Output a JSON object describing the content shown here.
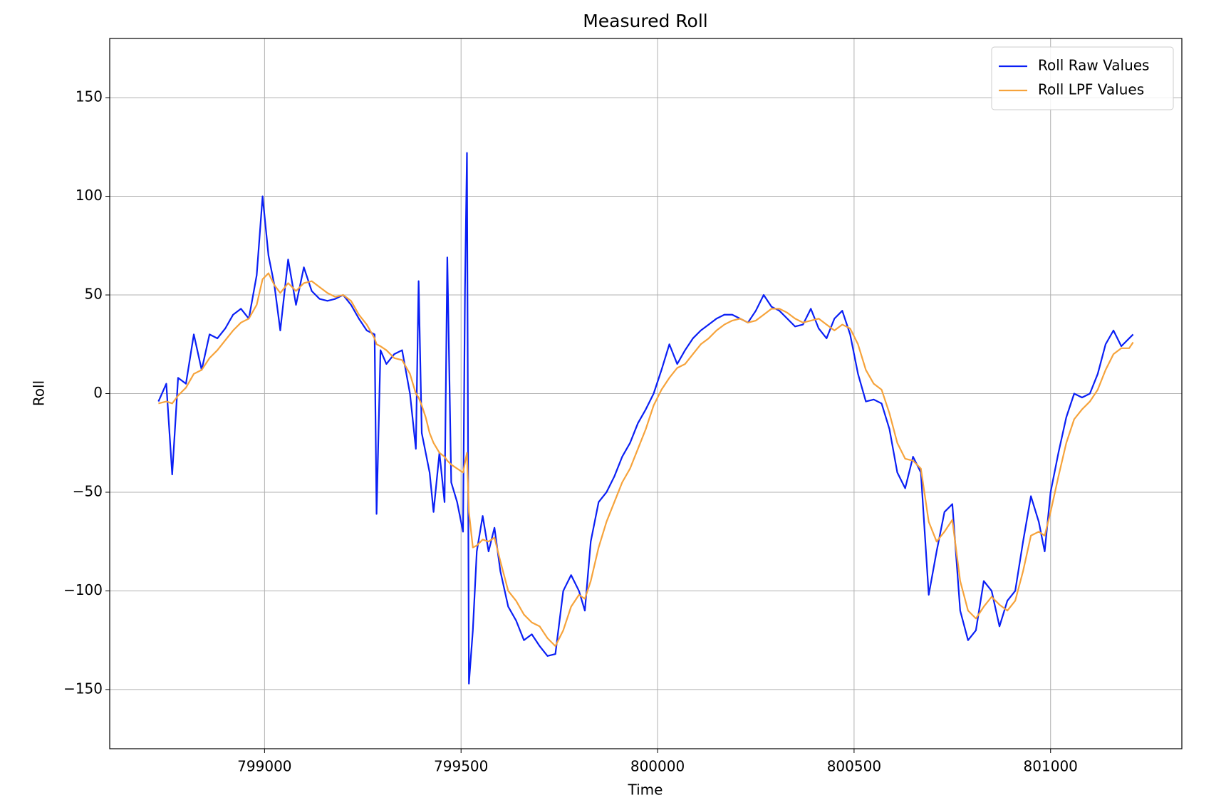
{
  "chart_data": {
    "type": "line",
    "title": "Measured Roll",
    "xlabel": "Time",
    "ylabel": "Roll",
    "x": [
      798730,
      798750,
      798765,
      798780,
      798800,
      798820,
      798840,
      798860,
      798880,
      798900,
      798920,
      798940,
      798960,
      798980,
      798995,
      799010,
      799025,
      799040,
      799060,
      799080,
      799100,
      799120,
      799140,
      799160,
      799180,
      799200,
      799220,
      799240,
      799260,
      799280,
      799285,
      799295,
      799310,
      799330,
      799350,
      799370,
      799385,
      799392,
      799400,
      799410,
      799420,
      799430,
      799445,
      799458,
      799465,
      799475,
      799490,
      799505,
      799510,
      799515,
      799520,
      799530,
      799540,
      799555,
      799570,
      799585,
      799600,
      799620,
      799640,
      799660,
      799680,
      799700,
      799720,
      799740,
      799760,
      799780,
      799800,
      799815,
      799830,
      799850,
      799870,
      799890,
      799910,
      799930,
      799950,
      799970,
      799990,
      800010,
      800030,
      800050,
      800070,
      800090,
      800110,
      800130,
      800150,
      800170,
      800190,
      800210,
      800230,
      800250,
      800270,
      800290,
      800310,
      800330,
      800350,
      800370,
      800390,
      800410,
      800430,
      800450,
      800470,
      800490,
      800510,
      800530,
      800550,
      800570,
      800590,
      800610,
      800630,
      800650,
      800670,
      800690,
      800710,
      800730,
      800750,
      800770,
      800790,
      800810,
      800830,
      800850,
      800870,
      800890,
      800910,
      800930,
      800950,
      800970,
      800985,
      801000,
      801020,
      801040,
      801060,
      801080,
      801100,
      801120,
      801140,
      801160,
      801180,
      801200,
      801210
    ],
    "series": [
      {
        "name": "Roll Raw Values",
        "color": "#0a1ff5",
        "values": [
          -4,
          5,
          -41,
          8,
          5,
          30,
          12,
          30,
          28,
          33,
          40,
          43,
          38,
          60,
          100,
          70,
          55,
          32,
          68,
          45,
          64,
          52,
          48,
          47,
          48,
          50,
          45,
          38,
          32,
          30,
          -61,
          22,
          15,
          20,
          22,
          0,
          -28,
          57,
          -20,
          -30,
          -40,
          -60,
          -30,
          -55,
          69,
          -45,
          -55,
          -70,
          53,
          122,
          -147,
          -120,
          -80,
          -62,
          -80,
          -68,
          -90,
          -108,
          -115,
          -125,
          -122,
          -128,
          -133,
          -132,
          -100,
          -92,
          -100,
          -110,
          -75,
          -55,
          -50,
          -42,
          -32,
          -25,
          -15,
          -8,
          0,
          12,
          25,
          15,
          22,
          28,
          32,
          35,
          38,
          40,
          40,
          38,
          36,
          42,
          50,
          44,
          42,
          38,
          34,
          35,
          43,
          33,
          28,
          38,
          42,
          30,
          10,
          -4,
          -3,
          -5,
          -18,
          -40,
          -48,
          -32,
          -40,
          -102,
          -80,
          -60,
          -56,
          -110,
          -125,
          -120,
          -95,
          -100,
          -118,
          -105,
          -100,
          -75,
          -52,
          -65,
          -80,
          -50,
          -30,
          -12,
          0,
          -2,
          0,
          10,
          25,
          32,
          24,
          28,
          30
        ]
      },
      {
        "name": "Roll LPF Values",
        "color": "#f6a33b",
        "values": [
          -5,
          -4,
          -5,
          -1,
          3,
          10,
          12,
          18,
          22,
          27,
          32,
          36,
          38,
          45,
          58,
          61,
          55,
          51,
          56,
          52,
          56,
          57,
          54,
          51,
          49,
          50,
          47,
          40,
          35,
          28,
          25,
          24,
          22,
          18,
          17,
          10,
          0,
          -2,
          -6,
          -12,
          -20,
          -25,
          -30,
          -32,
          -34,
          -36,
          -38,
          -40,
          -35,
          -30,
          -60,
          -78,
          -77,
          -74,
          -75,
          -73,
          -85,
          -100,
          -105,
          -112,
          -116,
          -118,
          -124,
          -128,
          -120,
          -108,
          -102,
          -104,
          -95,
          -78,
          -65,
          -55,
          -45,
          -38,
          -28,
          -18,
          -6,
          2,
          8,
          13,
          15,
          20,
          25,
          28,
          32,
          35,
          37,
          38,
          36,
          37,
          40,
          43,
          43,
          41,
          38,
          36,
          37,
          38,
          35,
          32,
          35,
          33,
          25,
          12,
          5,
          2,
          -10,
          -25,
          -33,
          -34,
          -38,
          -65,
          -75,
          -70,
          -64,
          -95,
          -110,
          -114,
          -108,
          -103,
          -107,
          -110,
          -105,
          -90,
          -72,
          -70,
          -72,
          -60,
          -42,
          -25,
          -13,
          -8,
          -4,
          2,
          12,
          20,
          23,
          23,
          26
        ]
      }
    ],
    "xlim": [
      798606,
      801334
    ],
    "ylim": [
      -180,
      180
    ],
    "xticks": [
      799000,
      799500,
      800000,
      800500,
      801000
    ],
    "yticks": [
      {
        "value": -150,
        "label": "−150"
      },
      {
        "value": -100,
        "label": "−100"
      },
      {
        "value": -50,
        "label": "−50"
      },
      0,
      50,
      100,
      150
    ],
    "grid": true,
    "legend": "upper right"
  }
}
